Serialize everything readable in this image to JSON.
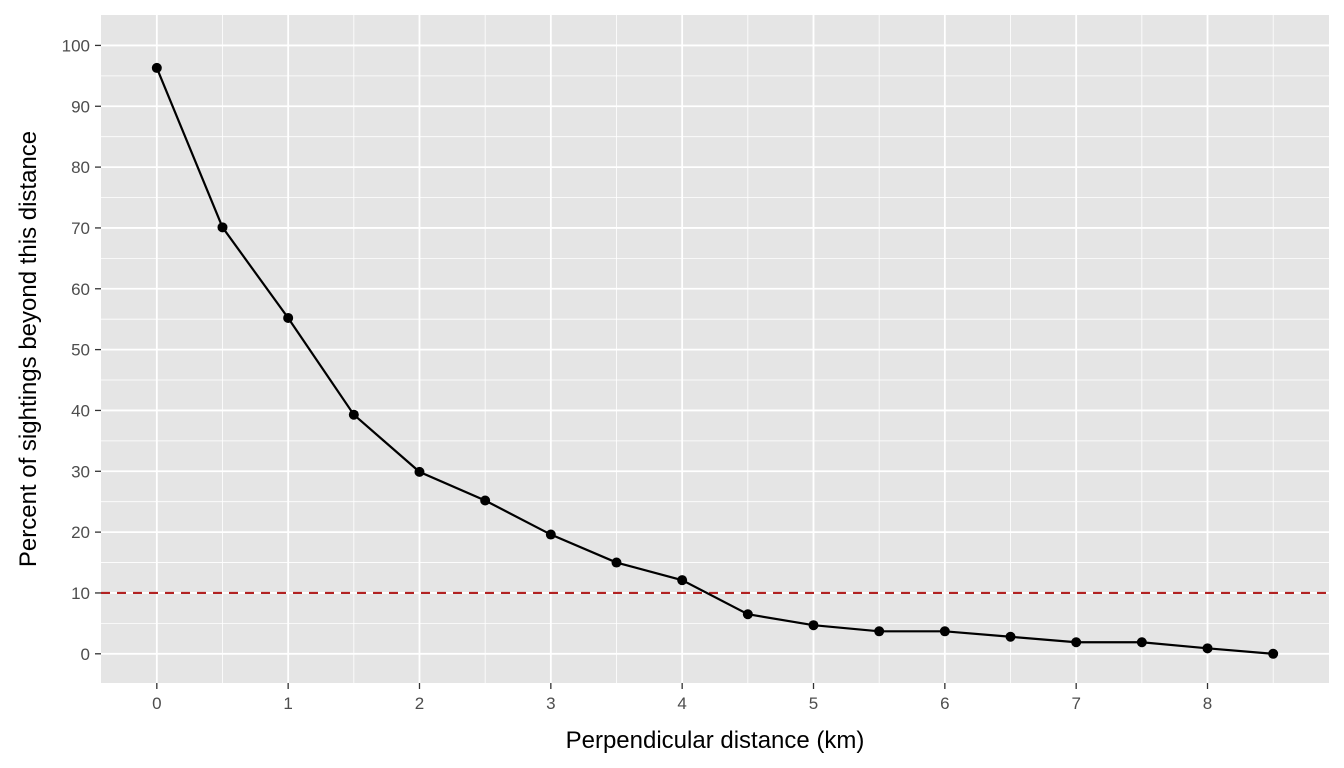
{
  "chart_data": {
    "type": "line",
    "title": "",
    "xlabel": "Perpendicular distance (km)",
    "ylabel": "Percent of sightings beyond this distance",
    "xlim": [
      -0.425,
      8.925
    ],
    "ylim": [
      -4.8,
      105
    ],
    "x_ticks": [
      0,
      1,
      2,
      3,
      4,
      5,
      6,
      7,
      8
    ],
    "y_ticks": [
      0,
      10,
      20,
      30,
      40,
      50,
      60,
      70,
      80,
      90,
      100
    ],
    "x_tick_labels": [
      "0",
      "1",
      "2",
      "3",
      "4",
      "5",
      "6",
      "7",
      "8"
    ],
    "y_tick_labels": [
      "0",
      "10",
      "20",
      "30",
      "40",
      "50",
      "60",
      "70",
      "80",
      "90",
      "100"
    ],
    "grid": true,
    "legend": "none",
    "series": [
      {
        "x": [
          0,
          0.5,
          1,
          1.5,
          2,
          2.5,
          3,
          3.5,
          4,
          4.5,
          5,
          5.5,
          6,
          6.5,
          7,
          7.5,
          8,
          8.5
        ],
        "y": [
          96.3,
          70.1,
          55.2,
          39.3,
          29.9,
          25.2,
          19.6,
          15.0,
          12.1,
          6.5,
          4.7,
          3.7,
          3.7,
          2.8,
          1.9,
          1.9,
          0.9,
          0.0
        ]
      }
    ],
    "reference_line": {
      "y": 10
    },
    "colors": {
      "panel": "#e5e5e5",
      "grid": "#ffffff",
      "line": "#000000",
      "point": "#000000",
      "reference": "#b22222"
    }
  }
}
